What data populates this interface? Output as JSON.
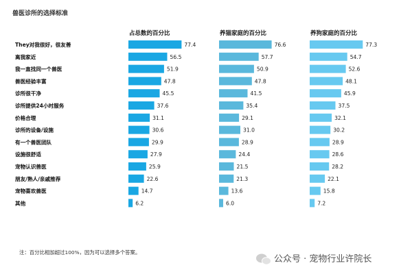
{
  "chart_data": {
    "type": "bar",
    "orientation": "horizontal",
    "title": "兽医诊所的选择标准",
    "categories": [
      "They对我很好，很友善",
      "离我家近",
      "我一直找同一个兽医",
      "兽医经验丰富",
      "诊所很干净",
      "诊所提供24小时服务",
      "价格合理",
      "诊所的设备/设施",
      "有一个兽医团队",
      "设施很舒适",
      "宠物认识兽医",
      "朋友/熟人/亲戚推荐",
      "宠物喜欢兽医",
      "其他"
    ],
    "series": [
      {
        "name": "占总数的百分比",
        "color": "#1aa7e3",
        "values": [
          77.4,
          56.5,
          51.9,
          47.8,
          45.5,
          37.6,
          31.1,
          30.6,
          29.9,
          27.9,
          25.9,
          22.6,
          14.7,
          6.2
        ]
      },
      {
        "name": "养猫家庭的百分比",
        "color": "#5ab8dc",
        "values": [
          76.6,
          57.7,
          50.9,
          47.8,
          41.5,
          35.4,
          29.1,
          31.0,
          28.9,
          24.4,
          21.5,
          21.3,
          13.6,
          6.0
        ]
      },
      {
        "name": "养狗家庭的百分比",
        "color": "#67c9f0",
        "values": [
          77.3,
          54.7,
          52.6,
          48.1,
          45.9,
          37.5,
          32.1,
          30.2,
          28.9,
          28.6,
          28.2,
          22.1,
          15.8,
          7.2
        ]
      }
    ],
    "xlim": [
      0,
      100
    ],
    "grid": false,
    "legend": "none"
  },
  "note": "注：百分比相加超过100%，因为可以选择多个答案。",
  "watermark": {
    "icon": "wechat-icon",
    "text": "公众号 · 宠物行业许院长"
  }
}
